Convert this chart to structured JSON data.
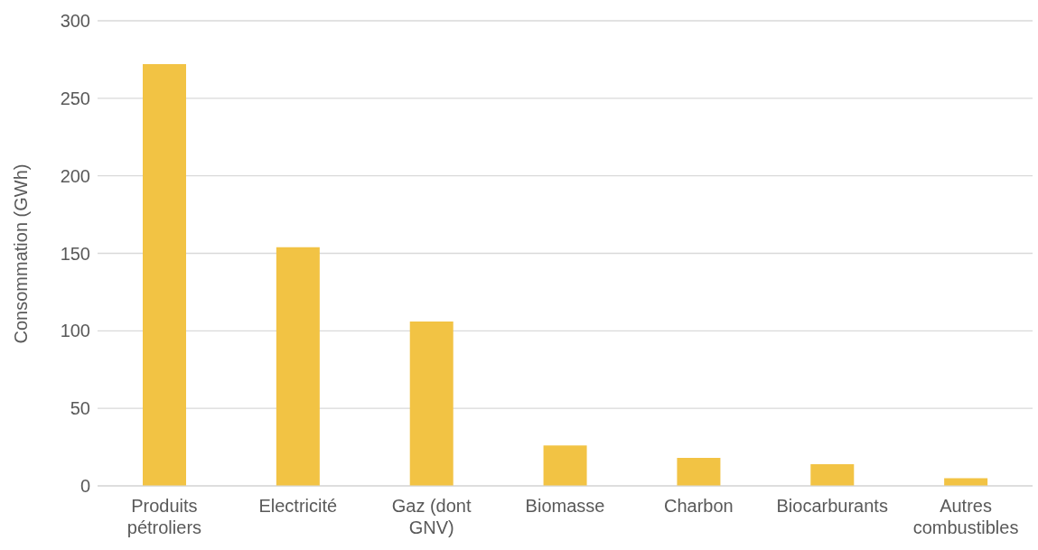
{
  "chart_data": {
    "type": "bar",
    "ylabel": "Consommation (GWh)",
    "categories": [
      "Produits pétroliers",
      "Electricité",
      "Gaz (dont GNV)",
      "Biomasse",
      "Charbon",
      "Biocarburants",
      "Autres combustibles"
    ],
    "values": [
      272,
      154,
      106,
      26,
      18,
      14,
      5
    ],
    "color": "#f2c344",
    "ylim": [
      0,
      300
    ],
    "yticks": [
      0,
      50,
      100,
      150,
      200,
      250,
      300
    ],
    "grid": "y",
    "legend": false
  }
}
